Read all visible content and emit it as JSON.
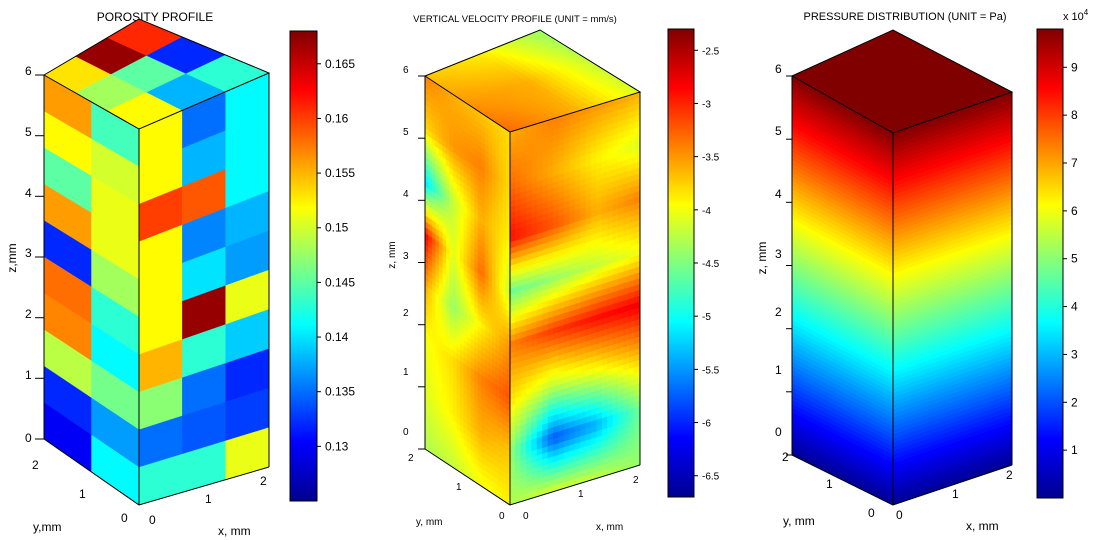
{
  "panels": [
    {
      "title": "POROSITY PROFILE",
      "zlabel": "z,mm",
      "ylabel": "y,mm",
      "xlabel": "x, mm",
      "colorbar_ticks": [
        "0.165",
        "0.16",
        "0.155",
        "0.15",
        "0.145",
        "0.14",
        "0.135",
        "0.13"
      ],
      "colorbar_exponent": ""
    },
    {
      "title": "VERTICAL VELOCITY PROFILE (UNIT = mm/s)",
      "zlabel": "z, mm",
      "ylabel": "y, mm",
      "xlabel": "x, mm",
      "colorbar_ticks": [
        "-2.5",
        "-3",
        "-3.5",
        "-4",
        "-4.5",
        "-5",
        "-5.5",
        "-6",
        "-6.5"
      ],
      "colorbar_exponent": ""
    },
    {
      "title": "PRESSURE DISTRIBUTION (UNIT = Pa)",
      "zlabel": "z, mm",
      "ylabel": "y, mm",
      "xlabel": "x, mm",
      "colorbar_ticks": [
        "9",
        "8",
        "7",
        "6",
        "5",
        "4",
        "3",
        "2",
        "1"
      ],
      "colorbar_exponent": "x 10^4"
    }
  ],
  "chart_data": [
    {
      "type": "heatmap",
      "title": "POROSITY PROFILE",
      "xlabel": "x, mm",
      "ylabel": "y,mm",
      "zlabel": "z,mm",
      "xlim": [
        0,
        2.4
      ],
      "ylim": [
        0,
        2.4
      ],
      "zlim": [
        0,
        6
      ],
      "x_ticks": [
        0,
        1,
        2
      ],
      "y_ticks": [
        0,
        1,
        2
      ],
      "z_ticks": [
        0,
        1,
        2,
        3,
        4,
        5,
        6
      ],
      "colorbar": {
        "min": 0.125,
        "max": 0.168,
        "ticks": [
          0.13,
          0.135,
          0.14,
          0.145,
          0.15,
          0.155,
          0.16,
          0.165
        ]
      },
      "front_face_x0_grid_rows_top_to_bottom": [
        [
          0.156,
          0.144
        ],
        [
          0.152,
          0.15
        ],
        [
          0.145,
          0.151
        ],
        [
          0.156,
          0.151
        ],
        [
          0.132,
          0.148
        ],
        [
          0.158,
          0.143
        ],
        [
          0.157,
          0.141
        ],
        [
          0.149,
          0.146
        ],
        [
          0.132,
          0.137
        ],
        [
          0.13,
          0.141
        ]
      ],
      "side_face_y0_grid_rows_top_to_bottom": [
        [
          0.152,
          0.135,
          0.141
        ],
        [
          0.152,
          0.138,
          0.141
        ],
        [
          0.16,
          0.159,
          0.141
        ],
        [
          0.152,
          0.136,
          0.138
        ],
        [
          0.152,
          0.14,
          0.137
        ],
        [
          0.152,
          0.167,
          0.151
        ],
        [
          0.155,
          0.143,
          0.139
        ],
        [
          0.147,
          0.135,
          0.132
        ],
        [
          0.135,
          0.134,
          0.133
        ],
        [
          0.143,
          0.143,
          0.151
        ]
      ],
      "top_face_z6": [
        [
          0.153,
          0.167,
          0.161
        ],
        [
          0.148,
          0.145,
          0.132
        ],
        [
          0.152,
          0.138,
          0.143
        ]
      ]
    },
    {
      "type": "heatmap",
      "title": "VERTICAL VELOCITY PROFILE (UNIT = mm/s)",
      "xlabel": "x, mm",
      "ylabel": "y, mm",
      "zlabel": "z, mm",
      "xlim": [
        0,
        2.4
      ],
      "ylim": [
        0,
        2.4
      ],
      "zlim": [
        0,
        6
      ],
      "x_ticks": [
        0,
        1,
        2
      ],
      "y_ticks": [
        0,
        1,
        2
      ],
      "z_ticks": [
        0,
        1,
        2,
        3,
        4,
        5,
        6
      ],
      "colorbar": {
        "min": -6.7,
        "max": -2.3,
        "ticks": [
          -2.5,
          -3,
          -3.5,
          -4,
          -4.5,
          -5,
          -5.5,
          -6,
          -6.5
        ]
      },
      "front_face_x0_grid_rows_top_to_bottom": [
        [
          -3.4,
          -3.6,
          -3.7,
          -3.8
        ],
        [
          -3.8,
          -3.5,
          -3.4,
          -3.8
        ],
        [
          -5.2,
          -4.2,
          -3.6,
          -3.9
        ],
        [
          -2.8,
          -4.1,
          -3.3,
          -4.2
        ],
        [
          -3.6,
          -4.4,
          -3.9,
          -3.5
        ],
        [
          -4.0,
          -3.8,
          -3.4,
          -3.2
        ],
        [
          -4.1,
          -3.9,
          -3.6,
          -3.7
        ],
        [
          -4.3,
          -4.2,
          -4.0,
          -3.9
        ]
      ],
      "side_face_y0_grid_rows_top_to_bottom": [
        [
          -3.6,
          -3.4,
          -3.5,
          -3.6
        ],
        [
          -3.3,
          -3.6,
          -3.9,
          -4.1
        ],
        [
          -2.9,
          -3.2,
          -3.6,
          -3.4
        ],
        [
          -4.6,
          -4.4,
          -4.2,
          -4.0
        ],
        [
          -3.4,
          -3.1,
          -2.9,
          -2.8
        ],
        [
          -3.8,
          -4.2,
          -4.0,
          -3.7
        ],
        [
          -4.4,
          -5.8,
          -5.4,
          -4.6
        ],
        [
          -4.3,
          -4.1,
          -4.2,
          -4.4
        ]
      ],
      "top_face_z6": [
        [
          -3.7,
          -3.9,
          -4.4
        ],
        [
          -3.5,
          -3.6,
          -4.2
        ],
        [
          -3.3,
          -3.6,
          -4.1
        ]
      ]
    },
    {
      "type": "heatmap",
      "title": "PRESSURE DISTRIBUTION (UNIT = Pa)",
      "xlabel": "x, mm",
      "ylabel": "y, mm",
      "zlabel": "z, mm",
      "xlim": [
        0,
        2.4
      ],
      "ylim": [
        0,
        2.4
      ],
      "zlim": [
        0,
        6
      ],
      "x_ticks": [
        0,
        1,
        2
      ],
      "y_ticks": [
        0,
        1,
        2
      ],
      "z_ticks": [
        0,
        1,
        2,
        3,
        4,
        5,
        6
      ],
      "colorbar": {
        "min": 0,
        "max": 98000,
        "ticks": [
          10000,
          20000,
          30000,
          40000,
          50000,
          60000,
          70000,
          80000,
          90000
        ],
        "tick_multiplier": "x 10^4"
      },
      "pressure_at_z_Pa": {
        "z": [
          0,
          1,
          2,
          3,
          4,
          5,
          6
        ],
        "value": [
          2000,
          18000,
          34000,
          50000,
          66000,
          82000,
          98000
        ]
      }
    }
  ]
}
